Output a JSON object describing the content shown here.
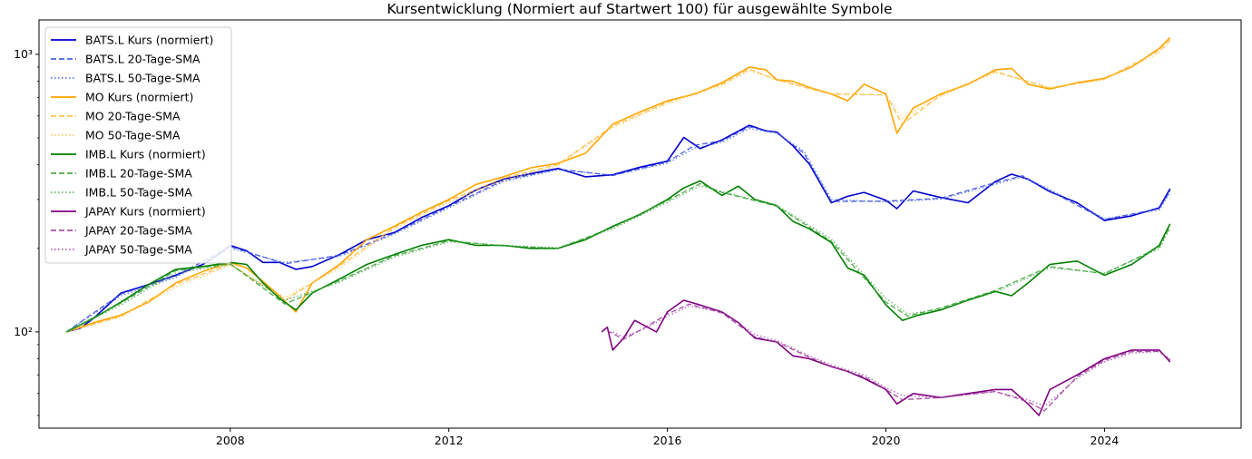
{
  "chart_data": {
    "type": "line",
    "title": "Kursentwicklung (Normiert auf Startwert 100) für ausgewählte Symbole",
    "xlabel": "",
    "ylabel": "",
    "y_scale": "log",
    "ylim": [
      45,
      1330
    ],
    "xlim": [
      2004.5,
      2026.5
    ],
    "x_ticks": [
      2008,
      2012,
      2016,
      2020,
      2024
    ],
    "y_ticks": [
      {
        "value": 100,
        "label": "10²"
      },
      {
        "value": 1000,
        "label": "10³"
      }
    ],
    "grid": false,
    "legend_position": "upper-left",
    "series": [
      {
        "name": "BATS.L Kurs (normiert)",
        "color": "#0000cc",
        "style": "solid",
        "x": [
          2005.0,
          2005.25,
          2005.5,
          2006.0,
          2006.5,
          2007.0,
          2007.5,
          2007.75,
          2008.0,
          2008.3,
          2008.6,
          2008.9,
          2009.2,
          2009.5,
          2010.0,
          2010.5,
          2011.0,
          2011.5,
          2012.0,
          2012.5,
          2013.0,
          2013.5,
          2014.0,
          2014.5,
          2015.0,
          2015.5,
          2016.0,
          2016.3,
          2016.6,
          2017.0,
          2017.5,
          2017.8,
          2018.0,
          2018.3,
          2018.6,
          2019.0,
          2019.3,
          2019.6,
          2020.0,
          2020.2,
          2020.5,
          2021.0,
          2021.5,
          2022.0,
          2022.3,
          2022.6,
          2023.0,
          2023.5,
          2024.0,
          2024.5,
          2025.0,
          2025.2
        ],
        "values": [
          100,
          103,
          112,
          138,
          148,
          160,
          175,
          188,
          205,
          196,
          178,
          178,
          168,
          172,
          190,
          215,
          228,
          258,
          285,
          325,
          355,
          372,
          388,
          362,
          368,
          392,
          412,
          502,
          458,
          492,
          555,
          530,
          525,
          468,
          402,
          292,
          308,
          318,
          298,
          278,
          322,
          305,
          292,
          348,
          370,
          355,
          320,
          292,
          252,
          262,
          280,
          328
        ]
      },
      {
        "name": "BATS.L 20-Tage-SMA",
        "color": "#3344dd",
        "style": "dashed",
        "x": [
          2005.0,
          2006.0,
          2007.0,
          2008.0,
          2009.0,
          2010.0,
          2011.0,
          2012.0,
          2013.0,
          2014.0,
          2015.0,
          2016.0,
          2016.5,
          2017.0,
          2017.5,
          2018.0,
          2018.5,
          2019.0,
          2020.0,
          2021.0,
          2022.0,
          2022.5,
          2023.0,
          2024.0,
          2025.0,
          2025.2
        ],
        "values": [
          100,
          137,
          159,
          203,
          176,
          189,
          227,
          283,
          352,
          386,
          366,
          410,
          470,
          488,
          548,
          522,
          440,
          295,
          296,
          303,
          345,
          365,
          322,
          254,
          278,
          322
        ]
      },
      {
        "name": "BATS.L 50-Tage-SMA",
        "color": "#4466ee",
        "style": "dotted",
        "x": [
          2005.0,
          2006.0,
          2007.0,
          2008.0,
          2009.0,
          2010.0,
          2011.0,
          2012.0,
          2013.0,
          2014.0,
          2015.0,
          2016.0,
          2016.5,
          2017.0,
          2017.5,
          2018.0,
          2018.5,
          2019.0,
          2020.0,
          2021.0,
          2022.0,
          2022.5,
          2023.0,
          2024.0,
          2025.0,
          2025.2
        ],
        "values": [
          100,
          135,
          157,
          200,
          178,
          187,
          225,
          280,
          348,
          384,
          367,
          405,
          460,
          482,
          540,
          520,
          448,
          300,
          294,
          301,
          340,
          362,
          326,
          256,
          275,
          318
        ]
      },
      {
        "name": "MO Kurs (normiert)",
        "color": "#ffa500",
        "style": "solid",
        "x": [
          2005.0,
          2005.5,
          2006.0,
          2006.5,
          2007.0,
          2007.5,
          2008.0,
          2008.3,
          2008.6,
          2008.9,
          2009.2,
          2009.5,
          2010.0,
          2010.5,
          2011.0,
          2011.5,
          2012.0,
          2012.5,
          2013.0,
          2013.5,
          2014.0,
          2014.5,
          2015.0,
          2015.5,
          2016.0,
          2016.5,
          2017.0,
          2017.5,
          2017.8,
          2018.0,
          2018.3,
          2018.6,
          2019.0,
          2019.3,
          2019.6,
          2020.0,
          2020.2,
          2020.5,
          2021.0,
          2021.5,
          2022.0,
          2022.3,
          2022.6,
          2023.0,
          2023.5,
          2024.0,
          2024.5,
          2025.0,
          2025.2
        ],
        "values": [
          100,
          108,
          115,
          128,
          150,
          165,
          178,
          170,
          152,
          135,
          118,
          150,
          175,
          215,
          240,
          270,
          300,
          340,
          362,
          390,
          405,
          440,
          560,
          620,
          680,
          720,
          790,
          900,
          880,
          810,
          800,
          760,
          720,
          680,
          780,
          720,
          520,
          640,
          720,
          780,
          880,
          890,
          780,
          750,
          790,
          820,
          900,
          1050,
          1150
        ]
      },
      {
        "name": "MO 20-Tage-SMA",
        "color": "#ffb833",
        "style": "dashed",
        "x": [
          2005.0,
          2006.0,
          2007.0,
          2008.0,
          2009.0,
          2010.0,
          2011.0,
          2012.0,
          2013.0,
          2014.0,
          2015.0,
          2016.0,
          2017.0,
          2017.5,
          2018.0,
          2019.0,
          2020.0,
          2020.3,
          2021.0,
          2022.0,
          2023.0,
          2024.0,
          2025.0,
          2025.2
        ],
        "values": [
          100,
          114,
          148,
          176,
          130,
          173,
          238,
          297,
          358,
          402,
          552,
          672,
          780,
          885,
          808,
          718,
          715,
          560,
          712,
          868,
          755,
          815,
          1030,
          1130
        ]
      },
      {
        "name": "MO 50-Tage-SMA",
        "color": "#ffc04d",
        "style": "dotted",
        "x": [
          2005.0,
          2006.0,
          2007.0,
          2008.0,
          2009.0,
          2010.0,
          2011.0,
          2012.0,
          2013.0,
          2014.0,
          2015.0,
          2016.0,
          2017.0,
          2017.5,
          2018.0,
          2019.0,
          2020.0,
          2020.3,
          2021.0,
          2022.0,
          2023.0,
          2024.0,
          2025.0,
          2025.2
        ],
        "values": [
          100,
          113,
          145,
          174,
          133,
          170,
          235,
          293,
          352,
          398,
          545,
          665,
          772,
          872,
          812,
          725,
          712,
          590,
          705,
          860,
          760,
          810,
          1010,
          1110
        ]
      },
      {
        "name": "IMB.L Kurs (normiert)",
        "color": "#008000",
        "style": "solid",
        "x": [
          2005.0,
          2005.5,
          2006.0,
          2006.5,
          2007.0,
          2007.5,
          2008.0,
          2008.3,
          2008.6,
          2008.9,
          2009.2,
          2009.5,
          2010.0,
          2010.5,
          2011.0,
          2011.5,
          2012.0,
          2012.5,
          2013.0,
          2013.5,
          2014.0,
          2014.5,
          2015.0,
          2015.5,
          2016.0,
          2016.3,
          2016.6,
          2017.0,
          2017.3,
          2017.6,
          2018.0,
          2018.3,
          2018.6,
          2019.0,
          2019.3,
          2019.6,
          2020.0,
          2020.3,
          2020.6,
          2021.0,
          2021.5,
          2022.0,
          2022.3,
          2022.6,
          2023.0,
          2023.5,
          2024.0,
          2024.5,
          2025.0,
          2025.2
        ],
        "values": [
          100,
          112,
          128,
          148,
          168,
          172,
          178,
          175,
          150,
          132,
          120,
          138,
          155,
          175,
          190,
          205,
          215,
          205,
          205,
          200,
          200,
          215,
          240,
          265,
          300,
          330,
          350,
          310,
          335,
          300,
          285,
          250,
          235,
          210,
          170,
          160,
          125,
          110,
          115,
          120,
          130,
          140,
          135,
          150,
          175,
          180,
          160,
          175,
          205,
          245
        ]
      },
      {
        "name": "IMB.L 20-Tage-SMA",
        "color": "#2e9e2e",
        "style": "dashed",
        "x": [
          2005.0,
          2006.0,
          2007.0,
          2008.0,
          2009.0,
          2010.0,
          2011.0,
          2012.0,
          2013.0,
          2014.0,
          2015.0,
          2016.0,
          2016.6,
          2017.0,
          2018.0,
          2019.0,
          2020.0,
          2020.4,
          2021.0,
          2022.0,
          2023.0,
          2024.0,
          2025.0,
          2025.2
        ],
        "values": [
          100,
          127,
          166,
          176,
          126,
          153,
          188,
          213,
          204,
          200,
          238,
          297,
          342,
          318,
          284,
          212,
          128,
          114,
          122,
          141,
          172,
          162,
          202,
          240
        ]
      },
      {
        "name": "IMB.L 50-Tage-SMA",
        "color": "#44aa44",
        "style": "dotted",
        "x": [
          2005.0,
          2006.0,
          2007.0,
          2008.0,
          2009.0,
          2010.0,
          2011.0,
          2012.0,
          2013.0,
          2014.0,
          2015.0,
          2016.0,
          2016.6,
          2017.0,
          2018.0,
          2019.0,
          2020.0,
          2020.4,
          2021.0,
          2022.0,
          2023.0,
          2024.0,
          2025.0,
          2025.2
        ],
        "values": [
          100,
          125,
          163,
          175,
          130,
          151,
          186,
          211,
          205,
          201,
          235,
          293,
          336,
          320,
          286,
          216,
          132,
          116,
          121,
          139,
          170,
          163,
          199,
          235
        ]
      },
      {
        "name": "JAPAY Kurs (normiert)",
        "color": "#800080",
        "style": "solid",
        "x": [
          2014.8,
          2014.9,
          2015.0,
          2015.2,
          2015.4,
          2015.6,
          2015.8,
          2016.0,
          2016.3,
          2016.6,
          2017.0,
          2017.3,
          2017.6,
          2018.0,
          2018.3,
          2018.6,
          2019.0,
          2019.3,
          2019.6,
          2020.0,
          2020.2,
          2020.5,
          2021.0,
          2021.5,
          2022.0,
          2022.3,
          2022.6,
          2022.8,
          2023.0,
          2023.5,
          2024.0,
          2024.5,
          2025.0,
          2025.2
        ],
        "values": [
          100,
          104,
          86,
          95,
          110,
          105,
          100,
          118,
          130,
          125,
          118,
          108,
          95,
          92,
          82,
          80,
          75,
          72,
          68,
          62,
          55,
          60,
          58,
          60,
          62,
          62,
          55,
          50,
          62,
          70,
          80,
          86,
          86,
          78
        ]
      },
      {
        "name": "JAPAY 20-Tage-SMA",
        "color": "#993399",
        "style": "dashed",
        "x": [
          2014.9,
          2015.2,
          2015.6,
          2016.0,
          2016.4,
          2017.0,
          2017.6,
          2018.0,
          2018.6,
          2019.0,
          2019.6,
          2020.0,
          2020.3,
          2021.0,
          2022.0,
          2022.6,
          2022.9,
          2023.5,
          2024.0,
          2024.5,
          2025.0,
          2025.2
        ],
        "values": [
          101,
          94,
          104,
          116,
          126,
          117,
          96,
          92,
          81,
          75,
          69,
          62,
          57,
          58,
          61,
          56,
          52,
          69,
          79,
          85,
          85,
          79
        ]
      },
      {
        "name": "JAPAY 50-Tage-SMA",
        "color": "#aa44aa",
        "style": "dotted",
        "x": [
          2015.0,
          2015.2,
          2015.6,
          2016.0,
          2016.4,
          2017.0,
          2017.6,
          2018.0,
          2018.6,
          2019.0,
          2019.6,
          2020.0,
          2020.3,
          2021.0,
          2022.0,
          2022.6,
          2022.9,
          2023.5,
          2024.0,
          2024.5,
          2025.0,
          2025.2
        ],
        "values": [
          100,
          96,
          103,
          114,
          124,
          118,
          98,
          93,
          82,
          76,
          70,
          63,
          59,
          58,
          61,
          57,
          54,
          68,
          78,
          84,
          85,
          80
        ]
      }
    ]
  }
}
